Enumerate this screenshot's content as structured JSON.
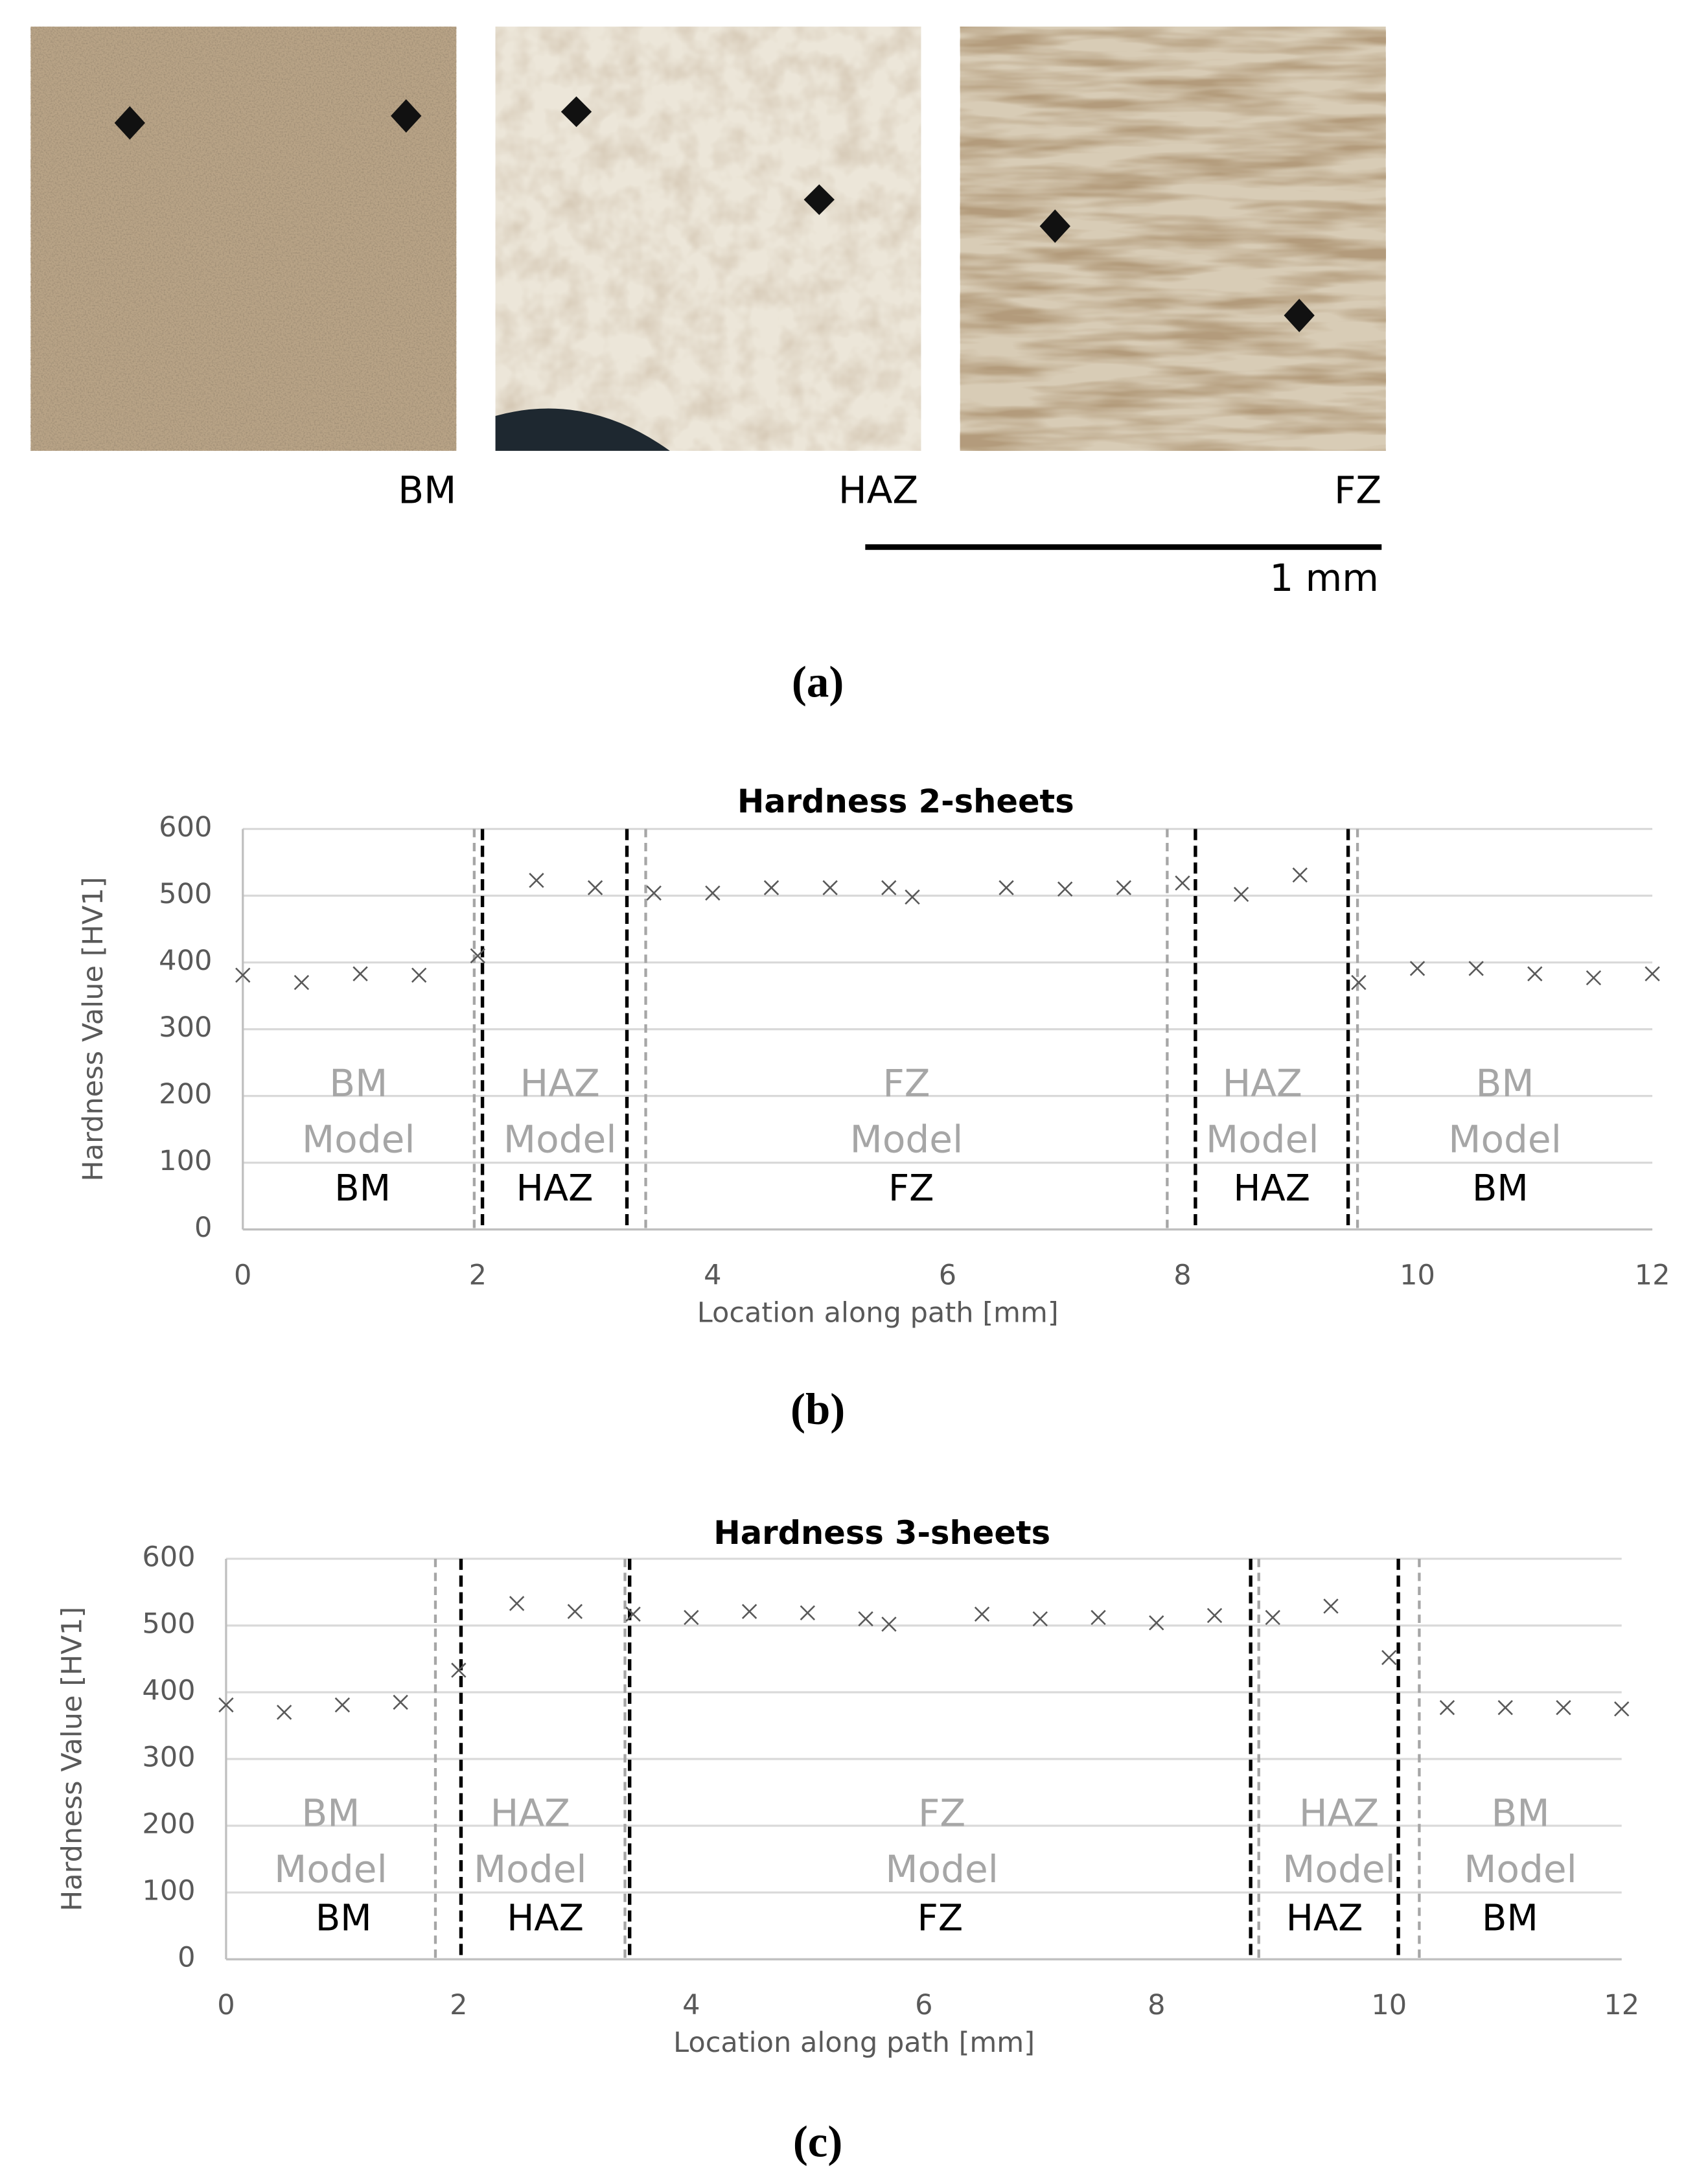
{
  "micrographs": {
    "labels": [
      "BM",
      "HAZ",
      "FZ"
    ],
    "scale_bar_label": "1 mm"
  },
  "panel_labels": [
    "(a)",
    "(b)",
    "(c)"
  ],
  "chart_data": [
    {
      "type": "scatter",
      "title": "Hardness 2-sheets",
      "x_label": "Location along path [mm]",
      "y_label": "Hardness Value [HV1]",
      "x": [
        0,
        0.5,
        1,
        1.5,
        2,
        2.5,
        3,
        3.5,
        4,
        4.5,
        5,
        5.5,
        5.7,
        6.5,
        7,
        7.5,
        8,
        8.5,
        9,
        9.5,
        10,
        10.5,
        11,
        11.5,
        12
      ],
      "values": [
        381,
        370,
        383,
        381,
        410,
        523,
        512,
        504,
        504,
        512,
        512,
        512,
        498,
        512,
        510,
        512,
        519,
        502,
        531,
        370,
        391,
        391,
        383,
        377,
        383
      ],
      "color": "#595959",
      "marker": "x",
      "xlim": [
        0,
        12
      ],
      "ylim": [
        0,
        600
      ],
      "xticks": [
        0,
        2,
        4,
        6,
        8,
        10,
        12
      ],
      "yticks": [
        0,
        100,
        200,
        300,
        400,
        500,
        600
      ],
      "grid": true,
      "model_boundaries": [
        1.97,
        3.43,
        7.87,
        9.49
      ],
      "model_boundary_color": "#a6a6a6",
      "measured_boundaries": [
        2.04,
        3.27,
        8.11,
        9.41
      ],
      "measured_boundary_color": "#000000",
      "model_regions": [
        [
          "BM",
          "Model"
        ],
        [
          "HAZ",
          "Model"
        ],
        [
          "FZ",
          "Model"
        ],
        [
          "HAZ",
          "Model"
        ],
        [
          "BM",
          "Model"
        ]
      ],
      "measured_regions": [
        "BM",
        "HAZ",
        "FZ",
        "HAZ",
        "BM"
      ]
    },
    {
      "type": "scatter",
      "title": "Hardness 3-sheets",
      "x_label": "Location along path [mm]",
      "y_label": "Hardness Value [HV1]",
      "x": [
        0,
        0.5,
        1,
        1.5,
        2,
        2.5,
        3,
        3.5,
        4,
        4.5,
        5,
        5.5,
        5.7,
        6.5,
        7,
        7.5,
        8,
        8.5,
        9,
        9.5,
        10,
        10.5,
        11,
        11.5,
        12
      ],
      "values": [
        381,
        370,
        381,
        385,
        433,
        533,
        521,
        517,
        512,
        521,
        519,
        510,
        502,
        517,
        510,
        512,
        504,
        515,
        512,
        529,
        452,
        377,
        377,
        377,
        375
      ],
      "color": "#595959",
      "marker": "x",
      "xlim": [
        0,
        12
      ],
      "ylim": [
        0,
        600
      ],
      "xticks": [
        0,
        2,
        4,
        6,
        8,
        10,
        12
      ],
      "yticks": [
        0,
        100,
        200,
        300,
        400,
        500,
        600
      ],
      "grid": true,
      "model_boundaries": [
        1.8,
        3.43,
        8.88,
        10.26
      ],
      "model_boundary_color": "#a6a6a6",
      "measured_boundaries": [
        2.02,
        3.47,
        8.81,
        10.08
      ],
      "measured_boundary_color": "#000000",
      "model_regions": [
        [
          "BM",
          "Model"
        ],
        [
          "HAZ",
          "Model"
        ],
        [
          "FZ",
          "Model"
        ],
        [
          "HAZ",
          "Model"
        ],
        [
          "BM",
          "Model"
        ]
      ],
      "measured_regions": [
        "BM",
        "HAZ",
        "FZ",
        "HAZ",
        "BM"
      ]
    }
  ]
}
